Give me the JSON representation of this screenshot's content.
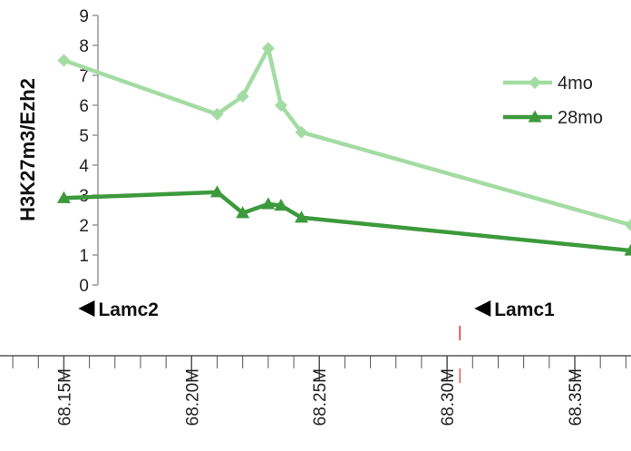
{
  "chart_data": {
    "type": "line",
    "ylabel": "H3K27m3/Ezh2",
    "ylim": [
      0,
      9
    ],
    "yticks": [
      0,
      1,
      2,
      3,
      4,
      5,
      6,
      7,
      8,
      9
    ],
    "genome_ticks": [
      "68.15M",
      "68.20M",
      "68.25M",
      "68.30M",
      "68.35M"
    ],
    "genome_tick_values": [
      68.15,
      68.2,
      68.25,
      68.3,
      68.35
    ],
    "xlim": [
      68.125,
      68.372
    ],
    "legend_position": "top-right",
    "series": [
      {
        "name": "4mo",
        "color": "#a3dca3",
        "marker": "diamond",
        "x": [
          68.15,
          68.21,
          68.22,
          68.23,
          68.235,
          68.243,
          68.372
        ],
        "y": [
          7.5,
          5.7,
          6.3,
          7.9,
          6.0,
          5.1,
          2.0
        ]
      },
      {
        "name": "28mo",
        "color": "#3c9a3c",
        "marker": "triangle",
        "x": [
          68.15,
          68.21,
          68.22,
          68.23,
          68.235,
          68.243,
          68.372
        ],
        "y": [
          2.9,
          3.1,
          2.4,
          2.7,
          2.65,
          2.25,
          1.15
        ]
      }
    ],
    "genes": [
      {
        "name": "Lamc2",
        "position": 68.15,
        "strand": "minus"
      },
      {
        "name": "Lamc1",
        "position": 68.305,
        "strand": "minus"
      }
    ],
    "marker_line_position": 68.305,
    "marker_line_color": "#e03030"
  }
}
